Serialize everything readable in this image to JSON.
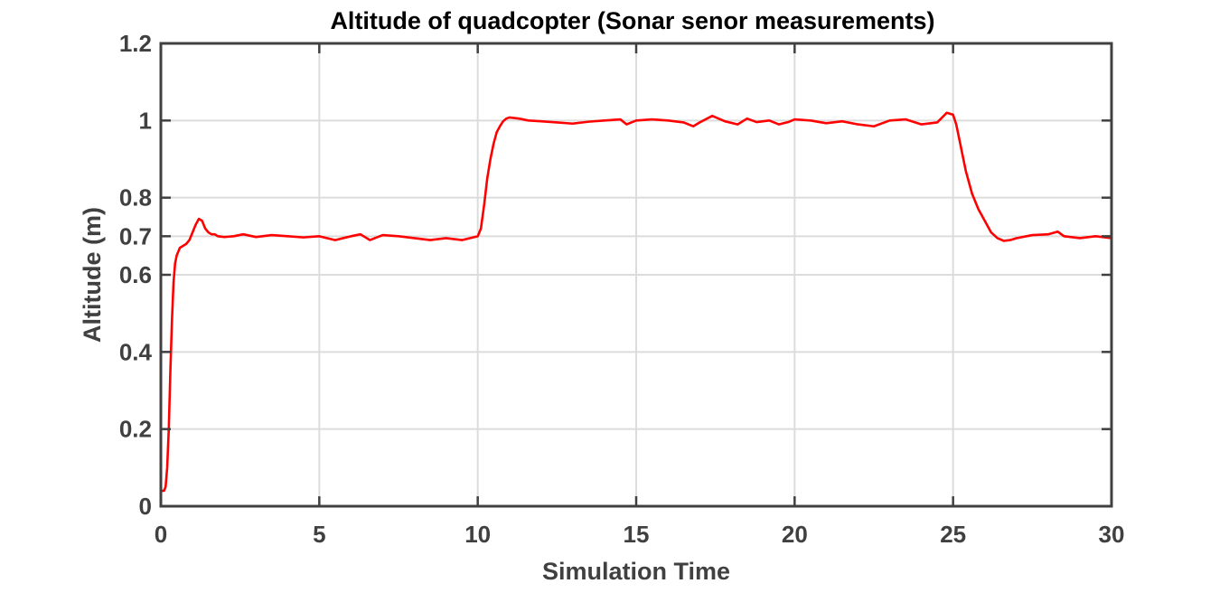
{
  "chart_data": {
    "type": "line",
    "title": "Altitude of quadcopter (Sonar senor measurements)",
    "xlabel": "Simulation Time",
    "ylabel": "Altitude (m)",
    "xlim": [
      0,
      30
    ],
    "ylim": [
      0,
      1.2
    ],
    "xticks": [
      0,
      5,
      10,
      15,
      20,
      25,
      30
    ],
    "xtick_labels": [
      "0",
      "5",
      "10",
      "15",
      "20",
      "25",
      "30"
    ],
    "yticks": [
      0,
      0.2,
      0.4,
      0.6,
      0.7,
      0.8,
      1,
      1.2
    ],
    "ytick_labels": [
      "0",
      "0.2",
      "0.4",
      "0.6",
      "0.7",
      "0.8",
      "1",
      "1.2"
    ],
    "grid": true,
    "series": [
      {
        "color": "#ff0000",
        "x": [
          0,
          0.1,
          0.15,
          0.2,
          0.25,
          0.3,
          0.35,
          0.4,
          0.45,
          0.5,
          0.55,
          0.6,
          0.7,
          0.8,
          0.9,
          1.0,
          1.1,
          1.2,
          1.3,
          1.4,
          1.5,
          1.6,
          1.7,
          1.8,
          2.0,
          2.3,
          2.6,
          3.0,
          3.5,
          4.0,
          4.5,
          5.0,
          5.5,
          6.0,
          6.3,
          6.6,
          7.0,
          7.5,
          8.0,
          8.5,
          9.0,
          9.5,
          10.0,
          10.1,
          10.2,
          10.3,
          10.4,
          10.5,
          10.6,
          10.7,
          10.8,
          10.9,
          11.0,
          11.3,
          11.6,
          12.0,
          12.5,
          13.0,
          13.5,
          14.0,
          14.5,
          14.7,
          15.0,
          15.5,
          16.0,
          16.5,
          16.8,
          17.0,
          17.4,
          17.8,
          18.2,
          18.5,
          18.8,
          19.2,
          19.5,
          19.8,
          20.0,
          20.5,
          21.0,
          21.5,
          22.0,
          22.5,
          23.0,
          23.5,
          24.0,
          24.5,
          24.8,
          25.0,
          25.1,
          25.2,
          25.3,
          25.4,
          25.5,
          25.6,
          25.8,
          26.0,
          26.2,
          26.4,
          26.6,
          26.8,
          27.0,
          27.5,
          28.0,
          28.3,
          28.5,
          29.0,
          29.5,
          30.0
        ],
        "y": [
          0.04,
          0.04,
          0.05,
          0.1,
          0.2,
          0.35,
          0.48,
          0.58,
          0.63,
          0.65,
          0.66,
          0.67,
          0.675,
          0.68,
          0.69,
          0.71,
          0.73,
          0.745,
          0.74,
          0.72,
          0.71,
          0.705,
          0.705,
          0.7,
          0.698,
          0.7,
          0.705,
          0.698,
          0.703,
          0.7,
          0.697,
          0.7,
          0.69,
          0.7,
          0.705,
          0.69,
          0.703,
          0.7,
          0.695,
          0.69,
          0.695,
          0.69,
          0.7,
          0.72,
          0.78,
          0.85,
          0.9,
          0.94,
          0.97,
          0.985,
          0.998,
          1.005,
          1.008,
          1.005,
          1.0,
          0.998,
          0.995,
          0.992,
          0.997,
          1.0,
          1.003,
          0.99,
          1.0,
          1.003,
          1.0,
          0.995,
          0.985,
          0.995,
          1.012,
          0.998,
          0.99,
          1.005,
          0.996,
          1.0,
          0.99,
          0.996,
          1.003,
          1.0,
          0.993,
          0.998,
          0.99,
          0.985,
          1.0,
          1.003,
          0.99,
          0.995,
          1.02,
          1.015,
          0.99,
          0.95,
          0.91,
          0.87,
          0.84,
          0.81,
          0.77,
          0.74,
          0.71,
          0.695,
          0.688,
          0.69,
          0.695,
          0.703,
          0.705,
          0.712,
          0.7,
          0.695,
          0.7,
          0.695
        ]
      }
    ]
  }
}
